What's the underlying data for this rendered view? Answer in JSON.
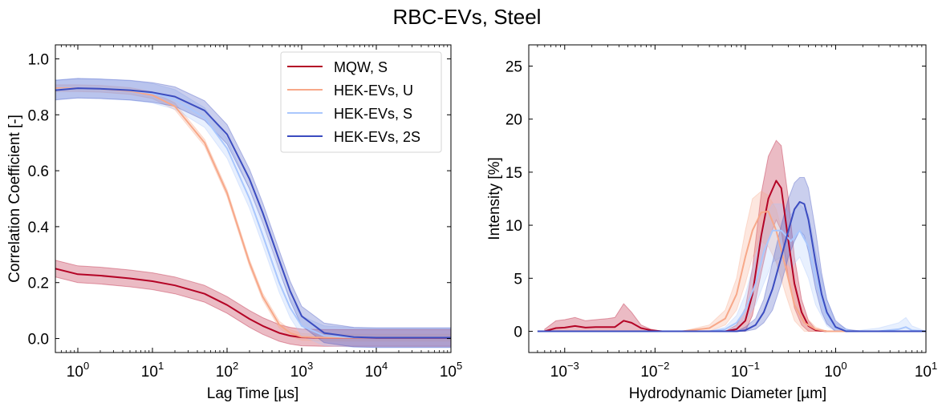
{
  "figure": {
    "title": "RBC-EVs, Steel"
  },
  "colors": {
    "MQW, S": "#b40426",
    "HEK-EVs, U": "#f7a889",
    "HEK-EVs, S": "#aac7fd",
    "HEK-EVs, 2S": "#3b4cc0"
  },
  "chart_data": [
    {
      "type": "line",
      "xscale": "log",
      "xlabel": "Lag Time [µs]",
      "ylabel": "Correlation Coefficient [-]",
      "xlim": [
        0.5,
        100000
      ],
      "ylim": [
        -0.05,
        1.05
      ],
      "xticks": [
        1,
        10,
        100,
        1000,
        10000,
        100000
      ],
      "xtick_labels": [
        {
          "base": "10",
          "exp": "0"
        },
        {
          "base": "10",
          "exp": "1"
        },
        {
          "base": "10",
          "exp": "2"
        },
        {
          "base": "10",
          "exp": "3"
        },
        {
          "base": "10",
          "exp": "4"
        },
        {
          "base": "10",
          "exp": "5"
        }
      ],
      "yticks": [
        0.0,
        0.2,
        0.4,
        0.6,
        0.8,
        1.0
      ],
      "ytick_labels": [
        "0.0",
        "0.2",
        "0.4",
        "0.6",
        "0.8",
        "1.0"
      ],
      "legend": {
        "placement": "upper right",
        "entries": [
          "MQW, S",
          "HEK-EVs, U",
          "HEK-EVs, S",
          "HEK-EVs, 2S"
        ]
      },
      "x": [
        0.5,
        1,
        2,
        5,
        10,
        20,
        50,
        100,
        200,
        300,
        500,
        700,
        1000,
        2000,
        5000,
        10000,
        100000
      ],
      "series": [
        {
          "name": "MQW, S",
          "band_halfwidth": 0.03,
          "values": [
            0.25,
            0.23,
            0.225,
            0.215,
            0.205,
            0.19,
            0.16,
            0.12,
            0.07,
            0.045,
            0.02,
            0.01,
            0.004,
            0.002,
            0.002,
            0.002,
            0.002
          ]
        },
        {
          "name": "HEK-EVs, U",
          "band_halfwidth": 0.012,
          "values": [
            0.895,
            0.895,
            0.893,
            0.885,
            0.87,
            0.83,
            0.7,
            0.52,
            0.27,
            0.15,
            0.05,
            0.02,
            0.006,
            0.003,
            0.003,
            0.003,
            0.003
          ]
        },
        {
          "name": "HEK-EVs, S",
          "band_halfwidth": 0.035,
          "values": [
            0.89,
            0.895,
            0.893,
            0.887,
            0.877,
            0.855,
            0.79,
            0.68,
            0.5,
            0.37,
            0.2,
            0.11,
            0.045,
            0.01,
            0.004,
            0.003,
            0.003
          ]
        },
        {
          "name": "HEK-EVs, 2S",
          "band_halfwidth": 0.035,
          "values": [
            0.888,
            0.895,
            0.893,
            0.888,
            0.88,
            0.865,
            0.815,
            0.73,
            0.57,
            0.45,
            0.28,
            0.17,
            0.08,
            0.02,
            0.005,
            0.003,
            0.003
          ]
        }
      ]
    },
    {
      "type": "line",
      "xscale": "log",
      "xlabel": "Hydrodynamic Diameter [µm]",
      "ylabel": "Intensity [%]",
      "xlim": [
        0.0004,
        10
      ],
      "ylim": [
        -2,
        27
      ],
      "xticks": [
        0.001,
        0.01,
        0.1,
        1,
        10
      ],
      "xtick_labels": [
        {
          "base": "10",
          "exp": "−3"
        },
        {
          "base": "10",
          "exp": "−2"
        },
        {
          "base": "10",
          "exp": "−1"
        },
        {
          "base": "10",
          "exp": "0"
        },
        {
          "base": "10",
          "exp": "1"
        }
      ],
      "yticks": [
        0,
        5,
        10,
        15,
        20,
        25
      ],
      "ytick_labels": [
        "0",
        "5",
        "10",
        "15",
        "20",
        "25"
      ],
      "series": [
        {
          "name": "MQW, S",
          "x": [
            0.0006,
            0.0008,
            0.001,
            0.0013,
            0.0017,
            0.0022,
            0.003,
            0.0036,
            0.0045,
            0.0055,
            0.007,
            0.009,
            0.012,
            0.02,
            0.04,
            0.06,
            0.08,
            0.1,
            0.12,
            0.15,
            0.18,
            0.22,
            0.25,
            0.3,
            0.35,
            0.42,
            0.5,
            0.6,
            0.8,
            1,
            2,
            5,
            9
          ],
          "values": [
            0.0,
            0.3,
            0.35,
            0.5,
            0.35,
            0.4,
            0.4,
            0.4,
            1.0,
            0.8,
            0.3,
            0.1,
            0.0,
            0.0,
            0.0,
            0.0,
            0.2,
            1.0,
            3.5,
            9.0,
            12.5,
            14.2,
            13.5,
            8.5,
            4.5,
            1.8,
            0.5,
            0.1,
            0.0,
            0.0,
            0.0,
            0.0,
            0.0
          ],
          "lower": [
            0.0,
            0.0,
            0.0,
            0.0,
            0.0,
            0.0,
            0.0,
            0.0,
            0.0,
            0.0,
            0.0,
            0.0,
            0.0,
            0.0,
            0.0,
            0.0,
            0.0,
            0.0,
            1.5,
            5.5,
            8.5,
            10.5,
            9.5,
            5.0,
            2.2,
            0.6,
            0.0,
            0.0,
            0.0,
            0.0,
            0.0,
            0.0,
            0.0
          ],
          "upper": [
            0.2,
            1.0,
            1.1,
            1.3,
            1.0,
            1.1,
            1.2,
            1.3,
            2.6,
            1.8,
            0.6,
            0.2,
            0.0,
            0.0,
            0.0,
            0.0,
            0.6,
            2.2,
            6.0,
            13.0,
            16.5,
            18.0,
            17.5,
            12.5,
            7.0,
            3.0,
            1.0,
            0.2,
            0.0,
            0.0,
            0.0,
            0.0,
            0.0
          ]
        },
        {
          "name": "HEK-EVs, U",
          "x": [
            0.0005,
            0.01,
            0.02,
            0.04,
            0.06,
            0.08,
            0.1,
            0.12,
            0.15,
            0.18,
            0.22,
            0.28,
            0.35,
            0.45,
            0.6,
            0.8,
            1,
            10
          ],
          "values": [
            0.0,
            0.0,
            0.0,
            0.3,
            1.2,
            3.5,
            7.0,
            9.5,
            11.2,
            11.3,
            9.5,
            6.0,
            2.5,
            0.8,
            0.2,
            0.0,
            0.0,
            0.0
          ],
          "lower": [
            0.0,
            0.0,
            0.0,
            0.0,
            0.6,
            2.0,
            4.5,
            7.0,
            8.5,
            8.0,
            6.5,
            3.5,
            1.0,
            0.0,
            0.0,
            0.0,
            0.0,
            0.0
          ],
          "upper": [
            0.0,
            0.0,
            0.0,
            0.6,
            2.0,
            5.0,
            9.5,
            12.5,
            13.2,
            12.8,
            11.5,
            8.0,
            4.0,
            1.5,
            0.4,
            0.0,
            0.0,
            0.0
          ]
        },
        {
          "name": "HEK-EVs, S",
          "x": [
            0.0005,
            0.02,
            0.04,
            0.06,
            0.08,
            0.1,
            0.13,
            0.16,
            0.2,
            0.25,
            0.32,
            0.4,
            0.5,
            0.6,
            0.8,
            1,
            1.5,
            3,
            5,
            6,
            7,
            10
          ],
          "values": [
            0.0,
            0.0,
            0.0,
            0.2,
            0.8,
            2.0,
            4.5,
            7.5,
            9.5,
            9.5,
            8.5,
            9.5,
            8.0,
            5.0,
            1.5,
            0.3,
            0.0,
            0.0,
            0.2,
            0.4,
            0.1,
            0.0
          ],
          "lower": [
            0.0,
            0.0,
            0.0,
            0.0,
            0.3,
            1.0,
            2.5,
            4.5,
            6.5,
            7.0,
            6.0,
            7.0,
            5.0,
            2.5,
            0.5,
            0.0,
            0.0,
            0.0,
            0.0,
            0.0,
            0.0,
            0.0
          ],
          "upper": [
            0.0,
            0.0,
            0.0,
            0.4,
            1.5,
            3.5,
            7.0,
            10.5,
            12.0,
            12.0,
            11.0,
            12.0,
            11.0,
            7.5,
            3.0,
            0.8,
            0.0,
            0.3,
            0.8,
            1.3,
            0.5,
            0.0
          ]
        },
        {
          "name": "HEK-EVs, 2S",
          "x": [
            0.0005,
            0.05,
            0.08,
            0.1,
            0.13,
            0.16,
            0.2,
            0.25,
            0.3,
            0.35,
            0.4,
            0.45,
            0.5,
            0.6,
            0.7,
            0.8,
            1,
            1.3,
            2,
            10
          ],
          "values": [
            0.0,
            0.0,
            0.0,
            0.1,
            0.6,
            1.8,
            4.0,
            7.0,
            9.5,
            11.5,
            12.2,
            12.0,
            10.5,
            6.5,
            3.5,
            1.8,
            0.4,
            0.0,
            0.0,
            0.0
          ],
          "lower": [
            0.0,
            0.0,
            0.0,
            0.0,
            0.2,
            0.8,
            2.0,
            4.5,
            7.0,
            8.5,
            9.5,
            9.0,
            7.5,
            4.0,
            1.8,
            0.7,
            0.0,
            0.0,
            0.0,
            0.0
          ],
          "upper": [
            0.0,
            0.0,
            0.0,
            0.4,
            1.2,
            3.0,
            6.5,
            10.0,
            12.5,
            14.0,
            14.5,
            14.5,
            13.5,
            9.5,
            5.5,
            3.0,
            1.0,
            0.2,
            0.0,
            0.0
          ]
        }
      ]
    }
  ]
}
